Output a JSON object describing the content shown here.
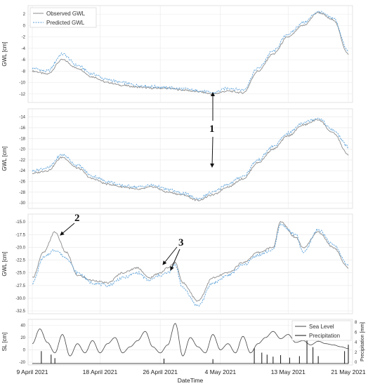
{
  "chart_data": [
    {
      "type": "line",
      "ylabel": "GWL [cm]",
      "ylim": [
        -13,
        3
      ],
      "yticks": [
        2,
        0,
        -2,
        -4,
        -6,
        -8,
        -10,
        -12
      ],
      "legend": {
        "placement": "top-left",
        "entries": [
          "Observed GWL",
          "Predicted GWL"
        ]
      },
      "x_days": [
        0,
        2,
        4,
        6,
        8,
        10,
        12,
        14,
        16,
        18,
        20,
        22,
        24,
        26,
        28,
        30,
        32,
        34,
        36,
        38,
        40,
        42
      ],
      "series": [
        {
          "name": "Observed GWL",
          "color": "#8c8c8c",
          "values": [
            -8,
            -8.5,
            -6,
            -7.5,
            -9,
            -10,
            -10.5,
            -10.8,
            -11,
            -11,
            -11.3,
            -11.6,
            -12,
            -11.5,
            -11.8,
            -8,
            -5,
            -2,
            0,
            2.3,
            1,
            -5
          ]
        },
        {
          "name": "Predicted GWL",
          "color": "#5aa0d8",
          "values": [
            -7.5,
            -8,
            -5,
            -7,
            -8.5,
            -9.5,
            -10,
            -10.5,
            -10.7,
            -10.9,
            -11.1,
            -11.4,
            -11.8,
            -11,
            -11.3,
            -7.5,
            -4.5,
            -1.5,
            0.5,
            2.4,
            1.3,
            -4.5
          ]
        }
      ]
    },
    {
      "type": "line",
      "ylabel": "GWL [cm]",
      "ylim": [
        -30.5,
        -13
      ],
      "yticks": [
        -14,
        -16,
        -18,
        -20,
        -22,
        -24,
        -26,
        -28,
        -30
      ],
      "x_days": [
        0,
        2,
        4,
        6,
        8,
        10,
        12,
        14,
        16,
        18,
        20,
        22,
        24,
        26,
        28,
        30,
        32,
        34,
        36,
        38,
        40,
        42
      ],
      "series": [
        {
          "name": "Observed GWL",
          "color": "#8c8c8c",
          "values": [
            -24.5,
            -24,
            -21.5,
            -23.5,
            -25.5,
            -26.5,
            -27,
            -27.5,
            -27,
            -28,
            -28.5,
            -29.5,
            -28.5,
            -27,
            -25.5,
            -22.5,
            -20,
            -17.5,
            -15.5,
            -14.5,
            -17,
            -21
          ]
        },
        {
          "name": "Predicted GWL",
          "color": "#5aa0d8",
          "values": [
            -24,
            -23.5,
            -21,
            -23,
            -25,
            -26,
            -26.8,
            -27,
            -26.7,
            -27.5,
            -28.2,
            -29.2,
            -28,
            -26.5,
            -25,
            -22,
            -19.5,
            -17,
            -15,
            -14.2,
            -16.5,
            -19.5
          ]
        }
      ]
    },
    {
      "type": "line",
      "ylabel": "GWL [cm]",
      "ylim": [
        -32.5,
        -14
      ],
      "yticks": [
        -15.0,
        -17.5,
        -20.0,
        -22.5,
        -25.0,
        -27.5,
        -30.0,
        -32.5
      ],
      "x_days": [
        0,
        1.5,
        3,
        4.5,
        6,
        8,
        10,
        12,
        14,
        15.5,
        17,
        18,
        19,
        20,
        22,
        24,
        26,
        28,
        30,
        32,
        33,
        35,
        36,
        38,
        40,
        42
      ],
      "series": [
        {
          "name": "Observed GWL",
          "color": "#8c8c8c",
          "values": [
            -26,
            -21,
            -17,
            -21,
            -25.5,
            -26.5,
            -27,
            -25,
            -24,
            -26,
            -25,
            -24,
            -23,
            -27,
            -30.5,
            -26,
            -25,
            -23,
            -21,
            -20,
            -15,
            -18,
            -20,
            -17,
            -20,
            -24
          ]
        },
        {
          "name": "Predicted GWL",
          "color": "#5aa0d8",
          "values": [
            -27,
            -22,
            -20.5,
            -22,
            -25,
            -27,
            -27.5,
            -26,
            -25,
            -26.5,
            -25.5,
            -25,
            -23.5,
            -28,
            -31.5,
            -27,
            -25.5,
            -23.5,
            -21.5,
            -20.5,
            -15.5,
            -17.5,
            -21,
            -16.5,
            -19.5,
            -23.5
          ]
        }
      ]
    },
    {
      "type": "line",
      "ylabel": "SL [cm]",
      "ylabel_right": "Precipitation [mm]",
      "ylim": [
        -20,
        45
      ],
      "yticks": [
        40,
        20,
        0,
        -20
      ],
      "ylim_right": [
        0,
        8
      ],
      "yticks_right": [
        0,
        2,
        4,
        6,
        8
      ],
      "legend": {
        "placement": "top-right",
        "entries": [
          "Sea Level",
          "Precipitation"
        ]
      },
      "x_days": [
        0,
        1,
        2,
        3,
        4,
        5,
        6,
        7,
        8,
        9,
        10,
        11,
        12,
        13,
        14,
        15,
        16,
        17,
        18,
        19,
        20,
        21,
        22,
        23,
        24,
        25,
        26,
        27,
        28,
        29,
        30,
        31,
        32,
        33,
        34,
        35,
        36,
        37,
        38,
        39,
        40,
        41,
        42
      ],
      "series": [
        {
          "name": "Sea Level",
          "color": "#444444",
          "values": [
            10,
            34,
            12,
            -5,
            25,
            -10,
            10,
            -5,
            15,
            -5,
            10,
            20,
            -5,
            5,
            15,
            30,
            5,
            -5,
            8,
            43,
            -10,
            20,
            5,
            -5,
            25,
            0,
            10,
            -5,
            22,
            -5,
            10,
            20,
            30,
            18,
            25,
            12,
            15,
            8,
            14,
            10,
            8,
            5,
            2
          ]
        },
        {
          "name": "Precipitation",
          "color": "#111111",
          "precip_events": [
            [
              1.2,
              2.2
            ],
            [
              2.5,
              1.5
            ],
            [
              3,
              0.8
            ],
            [
              17.5,
              0.7
            ],
            [
              24,
              0.6
            ],
            [
              29.5,
              2.8
            ],
            [
              30.5,
              1.9
            ],
            [
              31.2,
              1.5
            ],
            [
              32,
              1.1
            ],
            [
              33,
              1.4
            ],
            [
              34.2,
              0.9
            ],
            [
              35.5,
              1.2
            ],
            [
              36.5,
              7.6
            ],
            [
              37.3,
              3
            ],
            [
              38,
              1.2
            ],
            [
              41.5,
              2.2
            ],
            [
              42,
              3.5
            ]
          ]
        }
      ]
    }
  ],
  "x_axis": {
    "label": "DateTime",
    "ticks": [
      {
        "day": 0,
        "label": "9 April 2021"
      },
      {
        "day": 9,
        "label": "18 April 2021"
      },
      {
        "day": 17,
        "label": "26 April 2021"
      },
      {
        "day": 25,
        "label": "4 May 2021"
      },
      {
        "day": 34,
        "label": "13 May 2021"
      },
      {
        "day": 42,
        "label": "21 May 2021"
      }
    ]
  },
  "annotations": [
    {
      "label": "1",
      "panel": 0,
      "point_days": 25
    },
    {
      "label": "2",
      "panel": 2,
      "point_days": 4
    },
    {
      "label": "3",
      "panel": 2,
      "point_days": 19
    }
  ]
}
